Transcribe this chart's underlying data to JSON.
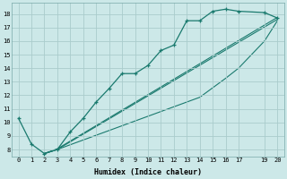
{
  "xlabel": "Humidex (Indice chaleur)",
  "bg_color": "#cce8e8",
  "grid_color": "#aacccc",
  "line_color": "#1a7a6e",
  "xlim": [
    -0.5,
    20.5
  ],
  "ylim": [
    7.5,
    18.8
  ],
  "xticks": [
    0,
    1,
    2,
    3,
    4,
    5,
    6,
    7,
    8,
    9,
    10,
    11,
    12,
    13,
    14,
    15,
    16,
    17,
    19,
    20
  ],
  "yticks": [
    8,
    9,
    10,
    11,
    12,
    13,
    14,
    15,
    16,
    17,
    18
  ],
  "series1_x": [
    0,
    1,
    2,
    3,
    4,
    5,
    6,
    7,
    8,
    9,
    10,
    11,
    12,
    13,
    14,
    15,
    16,
    17,
    19,
    20
  ],
  "series1_y": [
    10.3,
    8.4,
    7.7,
    8.0,
    9.3,
    10.3,
    11.5,
    12.5,
    13.6,
    13.6,
    14.2,
    15.3,
    15.7,
    17.5,
    17.5,
    18.2,
    18.35,
    18.2,
    18.1,
    17.7
  ],
  "series2_x": [
    2,
    3,
    4,
    5,
    6,
    7,
    8,
    9,
    10,
    11,
    12,
    13,
    14,
    15,
    16,
    17,
    19,
    20
  ],
  "series2_y": [
    7.7,
    8.0,
    8.35,
    8.7,
    9.05,
    9.4,
    9.75,
    10.1,
    10.45,
    10.8,
    11.15,
    11.5,
    11.85,
    12.55,
    13.25,
    14.0,
    16.0,
    17.5
  ],
  "series3_x": [
    2,
    3,
    20
  ],
  "series3_y": [
    7.7,
    8.0,
    17.6
  ],
  "series4_x": [
    2,
    3,
    20
  ],
  "series4_y": [
    7.7,
    8.05,
    17.75
  ]
}
